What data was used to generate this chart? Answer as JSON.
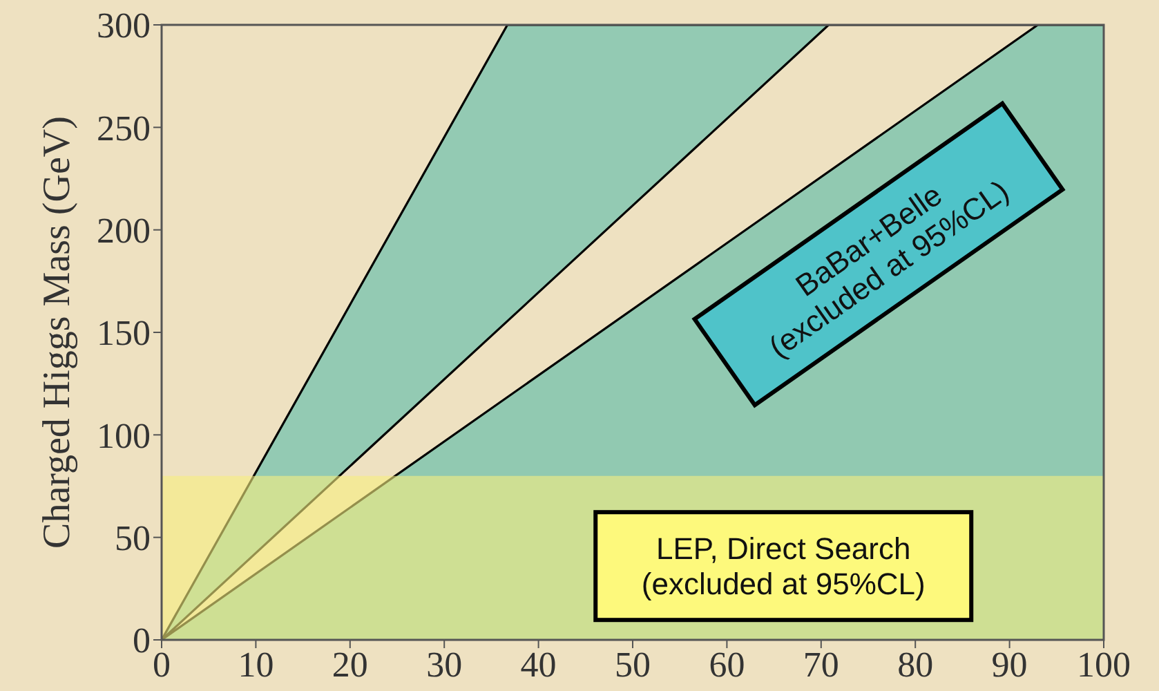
{
  "chart_data": {
    "type": "area",
    "ylabel": "Charged Higgs Mass (GeV)",
    "xlim": [
      0,
      100
    ],
    "xticks": [
      0,
      10,
      20,
      30,
      40,
      50,
      60,
      70,
      80,
      90,
      100
    ],
    "ylim": [
      0,
      300
    ],
    "yticks": [
      0,
      50,
      100,
      150,
      200,
      250,
      300
    ],
    "series": [
      {
        "color": "#93cab3",
        "x": [
          0,
          36.7,
          70.8
        ],
        "values": [
          0,
          300,
          300
        ]
      },
      {
        "color": "#eee1c1",
        "x": [
          0,
          70.8,
          93
        ],
        "values": [
          0,
          300,
          300
        ]
      },
      {
        "color": "#91c9b1",
        "x": [
          0,
          93,
          100
        ],
        "values": [
          0,
          300,
          300
        ]
      }
    ],
    "bands": [
      {
        "axis": "y",
        "from": 0,
        "to": 80,
        "color": "#f7ee7e",
        "label": "LEP, Direct Search\n(excluded at 95%CL)"
      }
    ],
    "annotations": [
      "BaBar+Belle\n(excluded at 95%CL)"
    ]
  }
}
